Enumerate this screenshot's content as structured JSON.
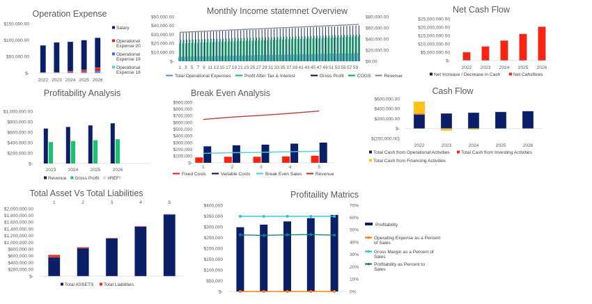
{
  "dashboard": {
    "background": "#ffffff"
  },
  "chart_data": [
    {
      "type": "bar",
      "mode": "stacked",
      "title": "Operation Expense",
      "categories": [
        "2022",
        "2023",
        "2024",
        "2025",
        "2026"
      ],
      "ylim": [
        0,
        150000
      ],
      "ytick_labels": [
        "$-",
        "$50,000.00",
        "$100,000.00",
        "$150,000.00"
      ],
      "grid": false,
      "legend": "right",
      "series": [
        {
          "name": "Operational Expense 18",
          "type": "bar",
          "color": "#4dd0e1",
          "values": [
            0,
            0,
            0,
            500,
            1000
          ]
        },
        {
          "name": "Operational Expense 19",
          "type": "bar",
          "color": "#2f6fe8",
          "values": [
            500,
            1000,
            2000,
            3000,
            5000
          ]
        },
        {
          "name": "Operational Expense 20",
          "type": "bar",
          "color": "#e8261b",
          "values": [
            1000,
            1000,
            4000,
            6000,
            10000
          ]
        },
        {
          "name": "Salary",
          "type": "bar",
          "color": "#0b1f66",
          "values": [
            82500,
            91000,
            89000,
            90500,
            91000
          ]
        }
      ],
      "legend_order": [
        3,
        2,
        1,
        0
      ]
    },
    {
      "type": "bar",
      "mode": "grouped",
      "title": "Monthly Income statemnet Overview",
      "categories": [
        "1",
        "2",
        "3",
        "4",
        "5",
        "6",
        "7",
        "8",
        "9",
        "10",
        "11",
        "12",
        "13",
        "14",
        "15",
        "16",
        "17",
        "18",
        "19",
        "20",
        "21",
        "22",
        "23",
        "24",
        "25",
        "26",
        "27",
        "28",
        "29",
        "30",
        "31",
        "32",
        "33",
        "34",
        "35",
        "36",
        "37",
        "38",
        "39",
        "40",
        "41",
        "42",
        "43",
        "44",
        "45",
        "46",
        "47",
        "48",
        "49",
        "50",
        "51",
        "52",
        "53",
        "54",
        "55",
        "56",
        "57",
        "58",
        "59",
        "60"
      ],
      "xtick_labels_shown": "odd",
      "ylim": [
        0,
        50000
      ],
      "ytick_labels": [
        "$-",
        "$10,000.00",
        "$20,000.00",
        "$30,000.00",
        "$40,000.00",
        "$50,000.00"
      ],
      "y2lim": [
        0,
        80000
      ],
      "y2tick_labels": [
        "$0.00",
        "$20,000.00",
        "$40,000.00",
        "$60,000.00",
        "$80,000.00"
      ],
      "grid": false,
      "legend": "bottom",
      "series": [
        {
          "name": "Total Operational Expenses",
          "type": "bar",
          "axis": "left",
          "color": "#5b8ff9",
          "values": [
            5000,
            5070,
            5140,
            5210,
            5280,
            5350,
            5420,
            5490,
            5560,
            5630,
            5700,
            5770,
            5840,
            5910,
            5980,
            6050,
            6120,
            6190,
            6260,
            6330,
            6400,
            6470,
            6540,
            6610,
            6680,
            6750,
            6820,
            6890,
            6960,
            7030,
            7100,
            7170,
            7240,
            7310,
            7380,
            7450,
            7520,
            7590,
            7660,
            7730,
            7800,
            7870,
            7940,
            8010,
            8080,
            8150,
            8220,
            8290,
            8360,
            8430,
            8500,
            8570,
            8640,
            8710,
            8780,
            8850,
            8920,
            8990,
            9060,
            9130
          ]
        },
        {
          "name": "Profit After Tax & Interest",
          "type": "bar",
          "axis": "left",
          "color": "#19c26b",
          "values": [
            20000,
            20130,
            20260,
            20390,
            20520,
            20650,
            20780,
            20910,
            21040,
            21170,
            21300,
            21430,
            21560,
            21690,
            21820,
            21950,
            22080,
            22210,
            22340,
            22470,
            22600,
            22730,
            22860,
            22990,
            23120,
            23250,
            23380,
            23510,
            23640,
            23770,
            23900,
            24030,
            24160,
            24290,
            24420,
            24550,
            24680,
            24810,
            24940,
            25070,
            25200,
            25330,
            25460,
            25590,
            25720,
            25850,
            25980,
            26110,
            26240,
            26370,
            26500,
            26630,
            26760,
            26890,
            27020,
            27150,
            27280,
            27410,
            27540,
            27670
          ]
        },
        {
          "name": "Gross Profit",
          "type": "bar",
          "axis": "left",
          "color": "#0b1f66",
          "values": [
            32000,
            32140,
            32280,
            32420,
            32560,
            32700,
            32840,
            32980,
            33120,
            33260,
            33400,
            33540,
            33680,
            33820,
            33960,
            34100,
            34240,
            34380,
            34520,
            34660,
            34800,
            34940,
            35080,
            35220,
            35360,
            35500,
            35640,
            35780,
            35920,
            36060,
            36200,
            36340,
            36480,
            36620,
            36760,
            36900,
            37040,
            37180,
            37320,
            37460,
            37600,
            37740,
            37880,
            38020,
            38160,
            38300,
            38440,
            38580,
            38720,
            38860,
            39000,
            39140,
            39280,
            39420,
            39560,
            39700,
            39840,
            39980,
            40120,
            40260
          ]
        },
        {
          "name": "COGS",
          "type": "bar",
          "axis": "left",
          "color": "#0fb35a",
          "values": [
            24000,
            24100,
            24200,
            24300,
            24400,
            24500,
            24600,
            24700,
            24800,
            24900,
            25000,
            25100,
            25200,
            25300,
            25400,
            25500,
            25600,
            25700,
            25800,
            25900,
            26000,
            26100,
            26200,
            26300,
            26400,
            26500,
            26600,
            26700,
            26800,
            26900,
            27000,
            27100,
            27200,
            27300,
            27400,
            27500,
            27600,
            27700,
            27800,
            27900,
            28000,
            28100,
            28200,
            28300,
            28400,
            28500,
            28600,
            28700,
            28800,
            28900,
            29000,
            29100,
            29200,
            29300,
            29400,
            29500,
            29600,
            29700,
            29800,
            29900
          ]
        },
        {
          "name": "Revenue",
          "type": "line",
          "axis": "right",
          "color": "#8c8c8c",
          "values": [
            52000,
            52240,
            52480,
            52720,
            52960,
            53200,
            53440,
            53680,
            53920,
            54160,
            54400,
            54640,
            54880,
            55120,
            55360,
            55600,
            55840,
            56080,
            56320,
            56560,
            56800,
            57040,
            57280,
            57520,
            57760,
            58000,
            58240,
            58480,
            58720,
            58960,
            59200,
            59440,
            59680,
            59920,
            60160,
            60400,
            60640,
            60880,
            61120,
            61360,
            61600,
            61840,
            62080,
            62320,
            62560,
            62800,
            63040,
            63280,
            63520,
            63760,
            64000,
            64240,
            64480,
            64720,
            64960,
            65200,
            65440,
            65680,
            65920,
            66160
          ]
        }
      ]
    },
    {
      "type": "bar",
      "mode": "stacked",
      "title": "Net Cash Flow",
      "categories": [
        "2022",
        "2023",
        "2024",
        "2025",
        "2026"
      ],
      "ylim": [
        0,
        25000000
      ],
      "ytick_labels": [
        "$-",
        "$5,000,000.00",
        "$10,000,000.00",
        "$15,000,000.00",
        "$20,000,000.00",
        "$25,000,000.00"
      ],
      "grid": false,
      "legend": "bottom",
      "series": [
        {
          "name": "Net Increase / Decrease in Cash",
          "type": "bar",
          "color": "#0b1f66",
          "values": [
            300000,
            50000,
            50000,
            50000,
            50000
          ]
        },
        {
          "name": "Net Cahsflows",
          "type": "bar",
          "color": "#fa2410",
          "values": [
            4700000,
            8400000,
            11900000,
            15900000,
            20200000
          ]
        }
      ]
    },
    {
      "type": "bar",
      "mode": "grouped",
      "title": "Profitability Analysis",
      "categories": [
        "2023",
        "2024",
        "2025",
        "2026"
      ],
      "ylim": [
        0,
        1000000
      ],
      "ytick_labels": [
        "$-",
        "$200,000.00",
        "$400,000.00",
        "$600,000.00",
        "$800,000.00",
        "$1,000,000.00"
      ],
      "grid": false,
      "legend": "bottom",
      "series": [
        {
          "name": "Revenue",
          "type": "bar",
          "color": "#0b1f66",
          "values": [
            670000,
            700000,
            730000,
            770000
          ]
        },
        {
          "name": "Gross Profit",
          "type": "bar",
          "color": "#19c26b",
          "values": [
            410000,
            430000,
            445000,
            465000
          ]
        },
        {
          "name": "#REF!",
          "type": "bar",
          "color": "#d9d9d9",
          "values": [
            8000,
            0,
            0,
            0
          ]
        }
      ]
    },
    {
      "type": "bar",
      "mode": "grouped",
      "title": "Break Even Analysis",
      "categories": [
        "1",
        "2",
        "3",
        "4",
        "5"
      ],
      "ylim": [
        0,
        900000
      ],
      "ytick_labels": [
        "$-",
        "$100,000",
        "$200,000",
        "$300,000",
        "$400,000",
        "$500,000",
        "$600,000",
        "$700,000",
        "$800,000",
        "$900,000"
      ],
      "grid": false,
      "legend": "bottom",
      "series": [
        {
          "name": "Fixed Costs",
          "type": "bar",
          "color": "#fa2410",
          "values": [
            80000,
            90000,
            90000,
            95000,
            105000
          ]
        },
        {
          "name": "Variable Costs",
          "type": "bar",
          "color": "#0b1f66",
          "values": [
            245000,
            260000,
            270000,
            285000,
            300000
          ]
        },
        {
          "name": "Break Even Sales",
          "type": "line",
          "color": "#4fd1d9",
          "values": [
            140000,
            150000,
            155000,
            165000,
            172000
          ]
        },
        {
          "name": "Revenue",
          "type": "line",
          "color": "#c0392b",
          "values": [
            645000,
            680000,
            705000,
            735000,
            770000
          ]
        }
      ]
    },
    {
      "type": "bar",
      "mode": "stacked",
      "title": "Cash Flow",
      "categories": [
        "2022",
        "2023",
        "2024",
        "2025",
        "2026"
      ],
      "ylim": [
        -200000,
        600000
      ],
      "ytick_labels": [
        "$(200,000.00)",
        "$-",
        "$200,000.00",
        "$400,000.00",
        "$600,000.00"
      ],
      "grid": false,
      "legend": "bottom",
      "series": [
        {
          "name": "Total Cash from Operational Activities",
          "type": "bar",
          "color": "#0b1f66",
          "values": [
            280000,
            305000,
            320000,
            335000,
            350000
          ]
        },
        {
          "name": "Total Cash from Investing Activities",
          "type": "bar",
          "color": "#fa2410",
          "values": [
            20000,
            0,
            0,
            0,
            0
          ]
        },
        {
          "name": "Total Cash from Financing Activities",
          "type": "bar",
          "color": "#ffc20e",
          "values": [
            240000,
            -40000,
            -20000,
            0,
            0
          ]
        }
      ]
    },
    {
      "type": "bar",
      "mode": "stacked",
      "title": "Total Asset Vs Total Liabilities",
      "categories": [
        "1",
        "2",
        "3",
        "4",
        "5"
      ],
      "xaxis_position": "top",
      "ylim": [
        0,
        2000000
      ],
      "ytick_labels": [
        "$-",
        "$200,000.00",
        "$400,000.00",
        "$600,000.00",
        "$800,000.00",
        "$1,000,000.00",
        "$1,200,000.00",
        "$1,400,000.00",
        "$1,600,000.00",
        "$1,800,000.00",
        "$2,000,000.00"
      ],
      "grid": false,
      "legend": "bottom",
      "series": [
        {
          "name": "Total ASSETS",
          "type": "bar",
          "color": "#0b1f66",
          "values": [
            560000,
            830000,
            1120000,
            1470000,
            1830000
          ]
        },
        {
          "name": "Total Liabilities",
          "type": "bar",
          "color": "#fa2410",
          "values": [
            70000,
            30000,
            15000,
            15000,
            10000
          ]
        }
      ]
    },
    {
      "type": "bar",
      "mode": "grouped",
      "title": "Profitaility Matrics",
      "categories": [
        "1",
        "2",
        "3",
        "4",
        "5"
      ],
      "xtick_labels_shown": "none",
      "ylim": [
        0,
        400000
      ],
      "ytick_labels": [
        "$-",
        "$50,000",
        "$100,000",
        "$150,000",
        "$200,000",
        "$250,000",
        "$300,000",
        "$350,000",
        "$400,000"
      ],
      "y2lim": [
        0,
        70
      ],
      "y2tick_labels": [
        "0%",
        "10%",
        "20%",
        "30%",
        "40%",
        "50%",
        "60%",
        "70%"
      ],
      "grid": false,
      "legend": "right",
      "series": [
        {
          "name": "Profitability",
          "type": "bar",
          "axis": "left",
          "color": "#0b1f66",
          "values": [
            298000,
            310000,
            325000,
            340000,
            355000
          ]
        },
        {
          "name": "Operating Expense as a Percent of Sales",
          "type": "line",
          "axis": "right",
          "marker": true,
          "color": "#f57c20",
          "values": [
            0,
            0,
            0,
            0,
            0
          ]
        },
        {
          "name": "Gross Margin as a Percent of Sales",
          "type": "line",
          "axis": "right",
          "marker": true,
          "color": "#26c6da",
          "values": [
            61,
            61,
            61,
            61,
            61
          ]
        },
        {
          "name": "Profitability as Percent to Sales",
          "type": "line",
          "axis": "right",
          "marker": true,
          "color": "#16817a",
          "values": [
            46,
            45.5,
            46,
            46.2,
            45.7
          ]
        }
      ]
    }
  ]
}
